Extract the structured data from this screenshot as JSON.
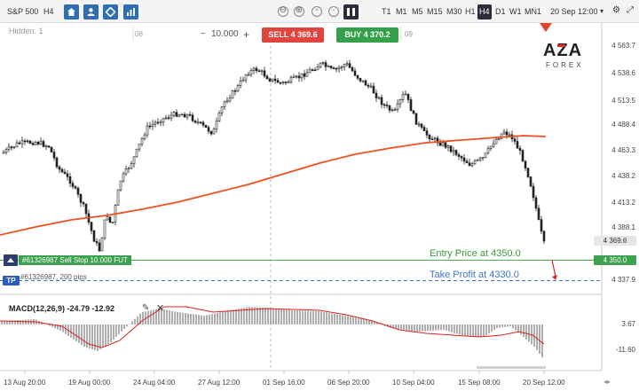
{
  "toolbar": {
    "symbol": "S&P 500",
    "timeframe": "H4",
    "zoom_out": "⊖",
    "zoom_in": "⊕",
    "timeframes": [
      "T1",
      "M1",
      "M5",
      "M15",
      "M30",
      "H1",
      "H4",
      "D1",
      "W1",
      "MN1"
    ],
    "active_timeframe": "H4",
    "date": "20 Sep 12:00"
  },
  "chart": {
    "hidden_label": "Hidden: 1",
    "quantity": "10.000",
    "quantity_minus": "−",
    "quantity_plus": "+",
    "sell_label": "SELL 4 369.6",
    "buy_label": "BUY 4 370.2",
    "day_marker_1": "08",
    "day_marker_2": "09",
    "price_axis": [
      "4 563.7",
      "4 538.6",
      "4 513.5",
      "4 488.4",
      "4 463.3",
      "4 438.2",
      "4 413.2",
      "4 388.1",
      "4 337.9"
    ],
    "current_price_tag": "4 369.6",
    "entry_price_tag": "4 350.0",
    "stop_loss_badge": "#61326987 Sell Stop 10.000 FUT",
    "take_profit_icon": "TP",
    "take_profit_text": "#61326987, 200 pips",
    "entry_annotation": "Entry Price at 4350.0",
    "take_profit_annotation": "Take Profit at 4330.0",
    "macd_label": "MACD(12,26,9) -24.79 -12.92",
    "macd_axis": [
      "3.67",
      "-11.60"
    ],
    "date_axis": [
      "13 Aug 20:00",
      "19 Aug 00:00",
      "24 Aug 04:00",
      "27 Aug 12:00",
      "01 Sep 16:00",
      "06 Sep 20:00",
      "10 Sep 04:00",
      "15 Sep 08:00",
      "20 Sep 12:00"
    ]
  },
  "logo": {
    "main": "AZA",
    "sub": "FOREX"
  },
  "colors": {
    "sell": "#e0443e",
    "buy": "#34a04a",
    "entry_line": "#4caf50",
    "tp_line": "#3b76c8",
    "ma": "#f0501e",
    "macd_signal": "#e02020"
  }
}
